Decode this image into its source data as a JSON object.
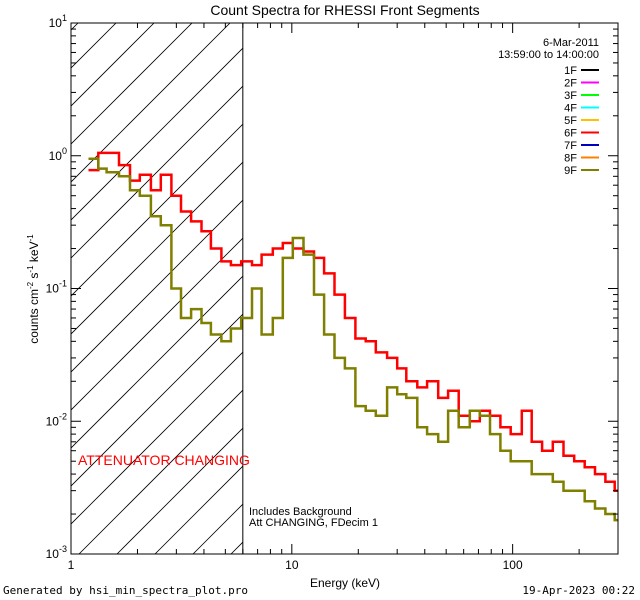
{
  "chart_data": {
    "type": "line",
    "title": "Count Spectra for RHESSI Front Segments",
    "xlabel": "Energy (keV)",
    "ylabel": {
      "base": "counts cm",
      "e1": "-2",
      "mid": " s",
      "e2": "-1",
      "end": " keV",
      "e3": "-1"
    },
    "xscale": "log",
    "yscale": "log",
    "xlim": [
      1,
      300
    ],
    "ylim": [
      0.001,
      10
    ],
    "x_ticks": [
      {
        "v": 1,
        "label": "1"
      },
      {
        "v": 10,
        "label": "10"
      },
      {
        "v": 100,
        "label": "100"
      }
    ],
    "y_ticks": [
      {
        "v": 0.001,
        "base": "10",
        "exp": "-3"
      },
      {
        "v": 0.01,
        "base": "10",
        "exp": "-2"
      },
      {
        "v": 0.1,
        "base": "10",
        "exp": "-1"
      },
      {
        "v": 1,
        "base": "10",
        "exp": "0"
      },
      {
        "v": 10,
        "base": "10",
        "exp": "1"
      }
    ],
    "date": "6-Mar-2011",
    "time_range": "13:59:00 to 14:00:00",
    "attenuator_text": "ATTENUATOR CHANGING",
    "attenuator_color": "#ff0000",
    "hatch_xmax": 6,
    "notes": [
      "Includes Background",
      "Att CHANGING, FDecim 1"
    ],
    "legend": [
      {
        "name": "1F",
        "color": "#000000"
      },
      {
        "name": "2F",
        "color": "#ff00ff"
      },
      {
        "name": "3F",
        "color": "#00ff00"
      },
      {
        "name": "4F",
        "color": "#00ffff"
      },
      {
        "name": "5F",
        "color": "#ffc000"
      },
      {
        "name": "6F",
        "color": "#ff0000"
      },
      {
        "name": "7F",
        "color": "#0000c0"
      },
      {
        "name": "8F",
        "color": "#ff8000"
      },
      {
        "name": "9F",
        "color": "#7f7f00"
      }
    ],
    "series": [
      {
        "name": "6F",
        "color": "#ff0000",
        "x": [
          1.2,
          1.33,
          1.45,
          1.65,
          1.85,
          2.05,
          2.3,
          2.55,
          2.85,
          3.15,
          3.5,
          3.9,
          4.3,
          4.8,
          5.3,
          5.9,
          6.6,
          7.3,
          8.2,
          9.1,
          10.1,
          11.3,
          12.6,
          14,
          15.6,
          17.4,
          19.4,
          21.6,
          24,
          27,
          30,
          33,
          37,
          41,
          46,
          51,
          57,
          64,
          71,
          79,
          88,
          98,
          110,
          122,
          136,
          152,
          170,
          190,
          212,
          236,
          263,
          290
        ],
        "y": [
          0.78,
          1.05,
          1.05,
          0.85,
          0.65,
          0.72,
          0.55,
          0.72,
          0.5,
          0.38,
          0.32,
          0.27,
          0.2,
          0.16,
          0.15,
          0.16,
          0.15,
          0.18,
          0.2,
          0.22,
          0.2,
          0.19,
          0.17,
          0.13,
          0.09,
          0.06,
          0.042,
          0.04,
          0.033,
          0.03,
          0.025,
          0.02,
          0.018,
          0.02,
          0.015,
          0.017,
          0.011,
          0.01,
          0.012,
          0.011,
          0.009,
          0.008,
          0.012,
          0.007,
          0.006,
          0.007,
          0.0055,
          0.005,
          0.0045,
          0.004,
          0.0035,
          0.003
        ]
      },
      {
        "name": "9F",
        "color": "#7f7f00",
        "x": [
          1.2,
          1.33,
          1.45,
          1.65,
          1.85,
          2.05,
          2.3,
          2.55,
          2.85,
          3.15,
          3.5,
          3.9,
          4.3,
          4.8,
          5.3,
          5.9,
          6.6,
          7.3,
          8.2,
          9.1,
          10.1,
          11.3,
          12.6,
          14,
          15.6,
          17.4,
          19.4,
          21.6,
          24,
          27,
          30,
          33,
          37,
          41,
          46,
          51,
          57,
          64,
          71,
          79,
          88,
          98,
          110,
          122,
          136,
          152,
          170,
          190,
          212,
          236,
          263,
          290
        ],
        "y": [
          0.95,
          0.8,
          0.75,
          0.7,
          0.55,
          0.5,
          0.35,
          0.3,
          0.1,
          0.06,
          0.07,
          0.055,
          0.045,
          0.04,
          0.05,
          0.06,
          0.1,
          0.045,
          0.06,
          0.17,
          0.24,
          0.18,
          0.09,
          0.045,
          0.03,
          0.025,
          0.013,
          0.012,
          0.011,
          0.018,
          0.016,
          0.015,
          0.009,
          0.008,
          0.007,
          0.012,
          0.009,
          0.012,
          0.011,
          0.008,
          0.006,
          0.005,
          0.005,
          0.004,
          0.004,
          0.0035,
          0.003,
          0.003,
          0.0025,
          0.0022,
          0.002,
          0.0018
        ]
      }
    ]
  },
  "footer": {
    "generated": "Generated by hsi_min_spectra_plot.pro",
    "timestamp": "19-Apr-2023 00:22"
  }
}
